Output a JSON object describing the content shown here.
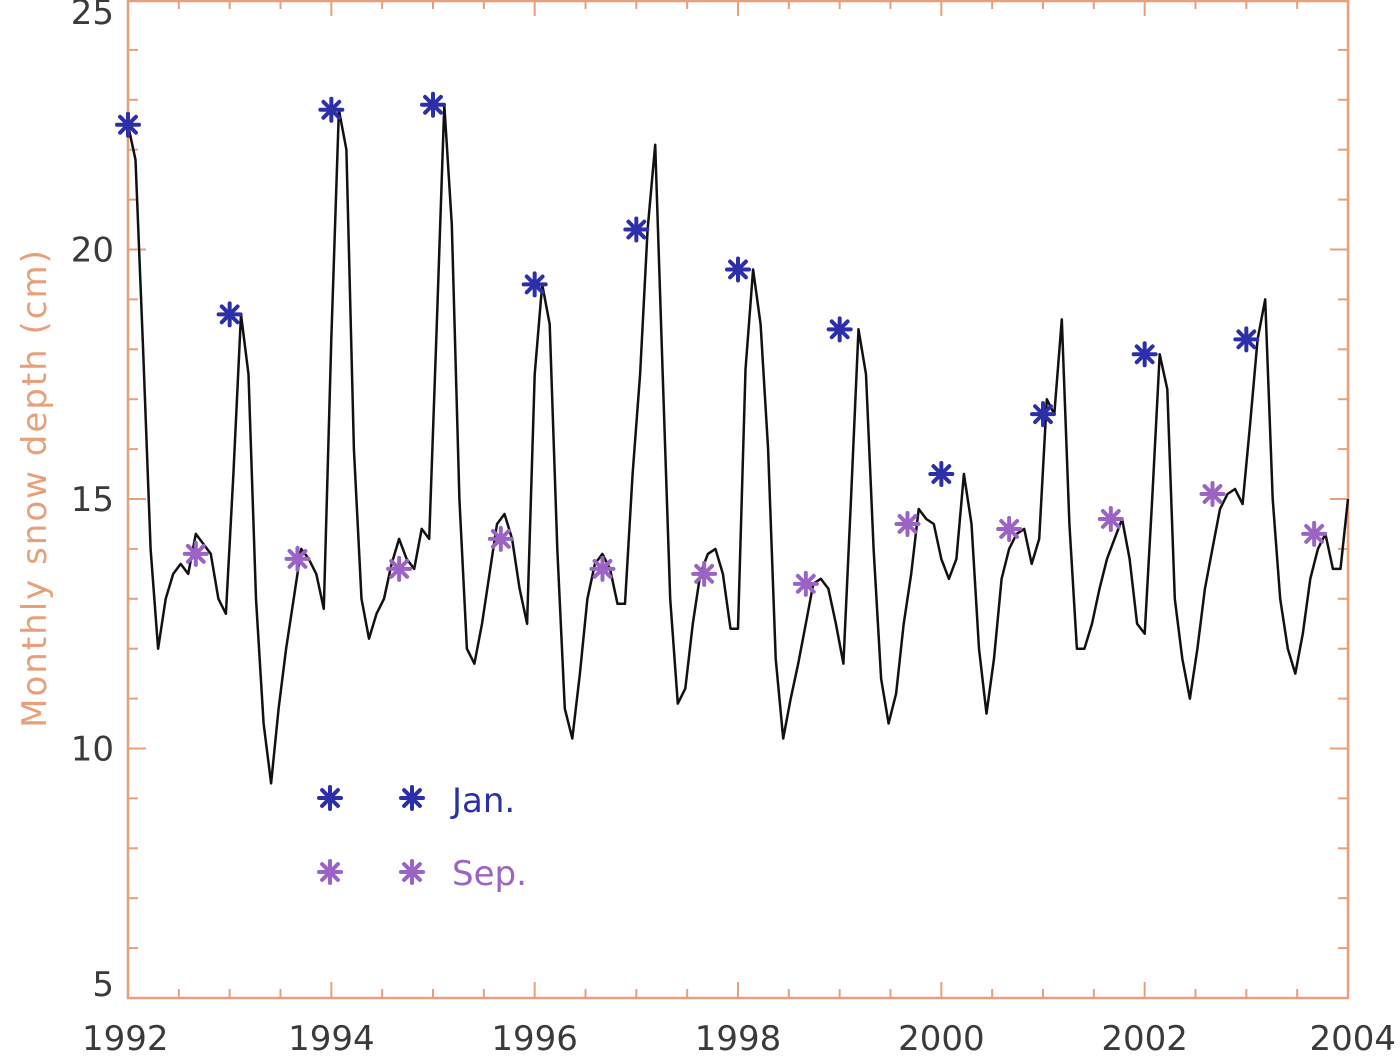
{
  "colors": {
    "axis": "#e8a07a",
    "line": "#111111",
    "jan": "#2c2fa8",
    "sep": "#9a63c4",
    "label": "#e8a07a"
  },
  "chart_data": {
    "type": "line",
    "title": "",
    "xlabel": "",
    "ylabel": "Monthly snow depth (cm)",
    "xlim": [
      1992,
      2004
    ],
    "ylim": [
      5,
      25
    ],
    "xticks": [
      "1992",
      "1994",
      "1996",
      "1998",
      "2000",
      "2002",
      "2004"
    ],
    "yticks": [
      "5",
      "10",
      "15",
      "20",
      "25"
    ],
    "grid": false,
    "series": [
      {
        "values": [
          22.5,
          21.8,
          18.0,
          14.0,
          12.0,
          13.0,
          13.5,
          13.7,
          13.5,
          14.3,
          14.1,
          13.9,
          13.0,
          12.7,
          15.5,
          18.7,
          17.5,
          13.0,
          10.5,
          9.3,
          10.8,
          12.0,
          13.0,
          14.0,
          13.8,
          13.5,
          12.8,
          18.2,
          22.8,
          22.0,
          16.0,
          13.0,
          12.2,
          12.7,
          13.0,
          13.7,
          14.2,
          13.8,
          13.6,
          14.4,
          14.2,
          18.5,
          22.9,
          20.5,
          15.0,
          12.0,
          11.7,
          12.5,
          13.5,
          14.5,
          14.7,
          14.2,
          13.2,
          12.5,
          17.5,
          19.3,
          18.5,
          14.0,
          10.8,
          10.2,
          11.5,
          13.0,
          13.7,
          13.9,
          13.6,
          12.9,
          12.9,
          15.5,
          17.5,
          20.4,
          22.1,
          17.5,
          13.0,
          10.9,
          11.2,
          12.5,
          13.5,
          13.9,
          14.0,
          13.5,
          12.4,
          12.4,
          17.6,
          19.6,
          18.5,
          16.0,
          11.8,
          10.2,
          11.0,
          11.7,
          12.5,
          13.3,
          13.4,
          13.2,
          12.5,
          11.7,
          15.0,
          18.4,
          17.5,
          14.0,
          11.4,
          10.5,
          11.1,
          12.5,
          13.5,
          14.8,
          14.6,
          14.5,
          13.8,
          13.4,
          13.8,
          15.5,
          14.5,
          12.0,
          10.7,
          11.8,
          13.4,
          14.0,
          14.3,
          14.4,
          13.7,
          14.2,
          17.0,
          16.7,
          18.6,
          14.5,
          12.0,
          12.0,
          12.5,
          13.2,
          13.8,
          14.2,
          14.6,
          13.8,
          12.5,
          12.3,
          15.0,
          17.9,
          17.2,
          13.0,
          11.8,
          11.0,
          12.0,
          13.2,
          14.0,
          14.8,
          15.1,
          15.2,
          14.9,
          16.5,
          18.2,
          19.0,
          15.0,
          13.0,
          12.0,
          11.5,
          12.3,
          13.4,
          14.0,
          14.3,
          13.6,
          13.6,
          15.0
        ]
      },
      {
        "name": "Jan.",
        "x": [
          1992,
          1993,
          1994,
          1995,
          1996,
          1997,
          1998,
          1999,
          2000,
          2001,
          2002,
          2003
        ],
        "values": [
          22.5,
          18.7,
          22.8,
          22.9,
          19.3,
          20.4,
          19.6,
          18.4,
          15.5,
          16.7,
          17.9,
          18.2
        ]
      },
      {
        "name": "Sep.",
        "x": [
          1992.667,
          1993.667,
          1994.667,
          1995.667,
          1996.667,
          1997.667,
          1998.667,
          1999.667,
          2000.667,
          2001.667,
          2002.667,
          2003.667
        ],
        "values": [
          13.9,
          13.8,
          13.6,
          14.2,
          13.6,
          13.5,
          13.3,
          14.5,
          14.4,
          14.6,
          15.1,
          14.3
        ]
      }
    ]
  }
}
